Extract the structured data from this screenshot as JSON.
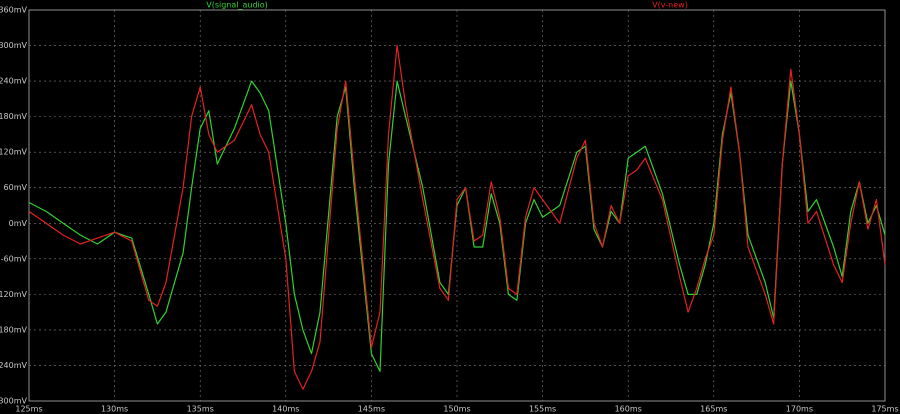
{
  "chart_data": {
    "type": "line",
    "x": [
      125,
      126,
      127,
      128,
      129,
      130,
      131,
      132,
      132.5,
      133,
      134,
      134.5,
      135,
      135.5,
      136,
      137,
      138,
      138.5,
      139,
      140,
      140.5,
      141,
      141.5,
      142,
      143,
      143.5,
      144,
      145,
      145.5,
      146,
      146.5,
      147,
      148,
      149,
      149.5,
      150,
      150.5,
      151,
      151.5,
      152,
      152.5,
      153,
      153.5,
      154,
      154.5,
      155,
      156,
      157,
      157.5,
      158,
      158.5,
      159,
      159.5,
      160,
      160.5,
      161,
      162,
      163,
      163.5,
      164,
      164.5,
      165,
      165.5,
      166,
      166.5,
      167,
      168,
      168.5,
      169,
      169.5,
      170,
      170.5,
      171,
      172,
      172.5,
      173,
      173.5,
      174,
      174.5,
      175
    ],
    "series": [
      {
        "name": "V(signal_audio)",
        "color": "#2fd22f",
        "values": [
          35,
          20,
          0,
          -20,
          -35,
          -15,
          -25,
          -120,
          -170,
          -150,
          -50,
          60,
          160,
          190,
          100,
          160,
          240,
          220,
          190,
          0,
          -120,
          -180,
          -220,
          -150,
          180,
          230,
          60,
          -220,
          -250,
          100,
          240,
          180,
          60,
          -100,
          -120,
          30,
          60,
          -40,
          -40,
          50,
          0,
          -120,
          -130,
          0,
          40,
          10,
          30,
          120,
          130,
          -10,
          -40,
          20,
          0,
          110,
          120,
          130,
          50,
          -70,
          -120,
          -120,
          -70,
          0,
          150,
          220,
          120,
          -20,
          -100,
          -160,
          100,
          240,
          150,
          20,
          40,
          -40,
          -90,
          20,
          70,
          0,
          30,
          -20
        ]
      },
      {
        "name": "V(v-new)",
        "color": "#e42121",
        "values": [
          20,
          0,
          -20,
          -35,
          -25,
          -15,
          -30,
          -130,
          -140,
          -100,
          60,
          180,
          230,
          150,
          120,
          140,
          200,
          150,
          120,
          -60,
          -250,
          -280,
          -250,
          -200,
          160,
          240,
          80,
          -210,
          -150,
          150,
          300,
          200,
          40,
          -110,
          -130,
          40,
          60,
          -30,
          -20,
          70,
          10,
          -110,
          -120,
          10,
          60,
          40,
          0,
          110,
          140,
          0,
          -40,
          30,
          0,
          80,
          90,
          110,
          40,
          -90,
          -150,
          -110,
          -60,
          -20,
          140,
          230,
          120,
          -40,
          -120,
          -170,
          100,
          260,
          150,
          0,
          20,
          -70,
          -100,
          0,
          70,
          -10,
          40,
          -70
        ]
      }
    ],
    "xlim": [
      125,
      175
    ],
    "xticks": [
      {
        "value": 125,
        "label": "125ms"
      },
      {
        "value": 130,
        "label": "130ms"
      },
      {
        "value": 135,
        "label": "135ms"
      },
      {
        "value": 140,
        "label": "140ms"
      },
      {
        "value": 145,
        "label": "145ms"
      },
      {
        "value": 150,
        "label": "150ms"
      },
      {
        "value": 155,
        "label": "155ms"
      },
      {
        "value": 160,
        "label": "160ms"
      },
      {
        "value": 165,
        "label": "165ms"
      },
      {
        "value": 170,
        "label": "170ms"
      },
      {
        "value": 175,
        "label": "175ms"
      }
    ],
    "ylim": [
      -300,
      360
    ],
    "yticks": [
      {
        "value": -300,
        "label": "-300mV"
      },
      {
        "value": -240,
        "label": "-240mV"
      },
      {
        "value": -180,
        "label": "-180mV"
      },
      {
        "value": -120,
        "label": "-120mV"
      },
      {
        "value": -60,
        "label": "-60mV"
      },
      {
        "value": 0,
        "label": "0mV"
      },
      {
        "value": 60,
        "label": "60mV"
      },
      {
        "value": 120,
        "label": "120mV"
      },
      {
        "value": 180,
        "label": "180mV"
      },
      {
        "value": 240,
        "label": "240mV"
      },
      {
        "value": 300,
        "label": "300mV"
      },
      {
        "value": 360,
        "label": "360mV"
      }
    ],
    "grid": true
  }
}
